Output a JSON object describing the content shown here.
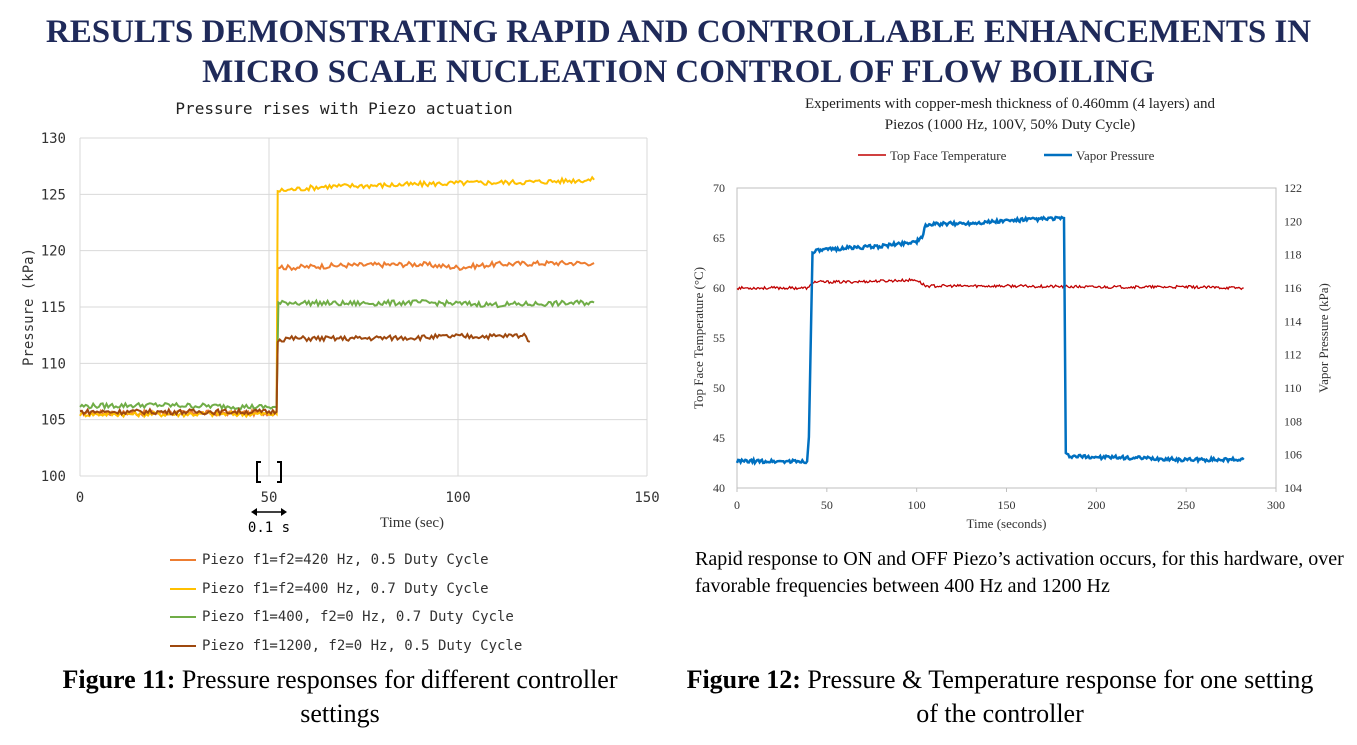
{
  "header": {
    "line1": "RESULTS DEMONSTRATING RAPID AND CONTROLLABLE ENHANCEMENTS IN",
    "line2": "MICRO SCALE NUCLEATION CONTROL OF FLOW BOILING"
  },
  "figure11": {
    "caption_label": "Figure 11:",
    "caption_text": "Pressure responses for different controller settings"
  },
  "figure12": {
    "caption_label": "Figure 12:",
    "caption_text": "Pressure & Temperature response for one setting of the controller"
  },
  "note": "Rapid response to ON and OFF Piezo’s activation occurs, for this hardware, over favorable frequencies between 400 Hz and 1200 Hz",
  "chart_data": [
    {
      "type": "line",
      "title": "Pressure rises with Piezo actuation",
      "xlabel": "Time (sec)",
      "ylabel": "Pressure (kPa)",
      "xlim": [
        0,
        150
      ],
      "ylim": [
        100,
        130
      ],
      "xticks": [
        0,
        50,
        100,
        150
      ],
      "yticks": [
        100,
        105,
        110,
        115,
        120,
        125,
        130
      ],
      "grid": true,
      "legend_position": "bottom",
      "annotation": "0.1 s",
      "series": [
        {
          "name": "Piezo f1=f2=420 Hz, 0.5 Duty Cycle",
          "color": "#ed7d31",
          "x": [
            0,
            52,
            52.3,
            55,
            70,
            90,
            100,
            110,
            125,
            136
          ],
          "y": [
            105.6,
            105.6,
            118.6,
            118.5,
            118.7,
            118.8,
            118.5,
            118.8,
            118.9,
            118.9
          ]
        },
        {
          "name": "Piezo f1=f2=400 Hz, 0.7 Duty Cycle",
          "color": "#ffc000",
          "x": [
            0,
            52,
            52.3,
            55,
            65,
            80,
            100,
            120,
            136
          ],
          "y": [
            105.5,
            105.5,
            125.3,
            125.4,
            125.7,
            125.8,
            126.0,
            126.1,
            126.3
          ]
        },
        {
          "name": "Piezo f1=400, f2=0 Hz, 0.7 Duty Cycle",
          "color": "#70ad47",
          "x": [
            0,
            20,
            52,
            52.5,
            55,
            70,
            90,
            110,
            125,
            136
          ],
          "y": [
            106.2,
            106.3,
            106.1,
            115.3,
            115.4,
            115.3,
            115.4,
            115.2,
            115.3,
            115.4
          ]
        },
        {
          "name": "Piezo f1=1200, f2=0 Hz, 0.5 Duty Cycle",
          "color": "#9e480e",
          "x": [
            0,
            52,
            52.3,
            55,
            70,
            90,
            100,
            110,
            118,
            119
          ],
          "y": [
            105.7,
            105.7,
            112.1,
            112.2,
            112.2,
            112.3,
            112.4,
            112.4,
            112.5,
            111.9
          ]
        }
      ]
    },
    {
      "type": "line",
      "title": "Experiments with copper-mesh thickness of 0.460mm (4 layers) and Piezos (1000 Hz, 100V, 50% Duty Cycle)",
      "xlabel": "Time (seconds)",
      "ylabel": "Top Face Temperature (°C)",
      "y2label": "Vapor Pressure (kPa)",
      "xlim": [
        0,
        300
      ],
      "ylim": [
        40,
        70
      ],
      "y2lim": [
        104,
        122
      ],
      "xticks": [
        0,
        50,
        100,
        150,
        200,
        250,
        300
      ],
      "yticks": [
        40,
        45,
        50,
        55,
        60,
        65,
        70
      ],
      "y2ticks": [
        104,
        106,
        108,
        110,
        112,
        114,
        116,
        118,
        120,
        122
      ],
      "grid": false,
      "legend_position": "top",
      "series": [
        {
          "name": "Top Face Temperature",
          "color": "#c00000",
          "axis": "left",
          "x": [
            0,
            40,
            42,
            60,
            100,
            105,
            150,
            200,
            250,
            282
          ],
          "y": [
            60.0,
            60.0,
            60.6,
            60.6,
            60.8,
            60.2,
            60.2,
            60.1,
            60.1,
            60.0
          ]
        },
        {
          "name": "Vapor Pressure",
          "color": "#0070c0",
          "axis": "right",
          "x": [
            0,
            39,
            40,
            42,
            60,
            80,
            100,
            103,
            105,
            130,
            160,
            182,
            183,
            185,
            220,
            250,
            282
          ],
          "y": [
            105.6,
            105.6,
            107.0,
            118.2,
            118.4,
            118.5,
            118.8,
            119.0,
            119.8,
            119.9,
            120.1,
            120.2,
            106.0,
            105.9,
            105.8,
            105.7,
            105.7
          ]
        }
      ]
    }
  ]
}
